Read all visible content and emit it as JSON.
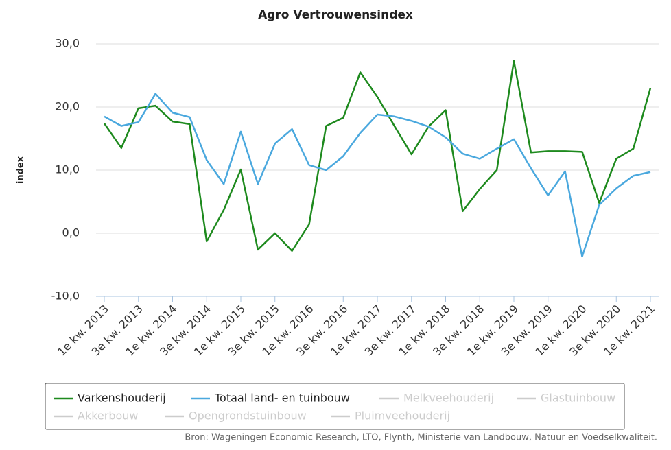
{
  "chart_data": {
    "type": "line",
    "title": "Agro Vertrouwensindex",
    "y_label": "index",
    "source": "Bron: Wageningen Economic Research, LTO, Flynth, Ministerie van Landbouw, Natuur en Voedselkwaliteit.",
    "categories": [
      "1e kw. 2013",
      null,
      "3e kw. 2013",
      null,
      "1e kw. 2014",
      null,
      "3e kw. 2014",
      null,
      "1e kw. 2015",
      null,
      "3e kw. 2015",
      null,
      "1e kw. 2016",
      null,
      "3e kw. 2016",
      null,
      "1e kw. 2017",
      null,
      "3e kw. 2017",
      null,
      "1e kw. 2018",
      null,
      "3e kw. 2018",
      null,
      "1e kw. 2019",
      null,
      "3e kw. 2019",
      null,
      "1e kw. 2020",
      null,
      "3e kw. 2020",
      null,
      "1e kw. 2021"
    ],
    "series": [
      {
        "name": "Varkenshouderij",
        "color": "#1e8a1e",
        "values": [
          17.4,
          13.5,
          19.8,
          20.2,
          17.7,
          17.3,
          -1.3,
          3.7,
          10.1,
          -2.6,
          0,
          -2.8,
          1.4,
          17.0,
          18.3,
          25.5,
          21.6,
          17.0,
          12.5,
          16.9,
          19.5,
          3.5,
          7.0,
          10.0,
          27.3,
          12.8,
          13.0,
          13.0,
          12.9,
          4.8,
          11.8,
          13.4,
          23.0
        ]
      },
      {
        "name": "Totaal land- en tuinbouw",
        "color": "#4aa8de",
        "values": [
          18.5,
          17.0,
          17.6,
          22.1,
          19.1,
          18.4,
          11.6,
          7.8,
          16.1,
          7.8,
          14.2,
          16.5,
          10.8,
          10.0,
          12.2,
          15.9,
          18.8,
          18.5,
          17.8,
          16.9,
          15.2,
          12.6,
          11.8,
          13.4,
          14.9,
          10.3,
          6.0,
          9.8,
          -3.7,
          4.5,
          7.1,
          9.1,
          9.7
        ]
      }
    ],
    "hidden_series": [
      "Melkveehouderij",
      "Glastuinbouw",
      "Akkerbouw",
      "Opengrondstuinbouw",
      "Pluimveehouderij"
    ],
    "hidden_color": "#cccccc",
    "ylim": [
      -10,
      30
    ],
    "yticks": [
      {
        "value": -10,
        "label": "-10,0"
      },
      {
        "value": 0,
        "label": "0,0"
      },
      {
        "value": 10,
        "label": "10,0"
      },
      {
        "value": 20,
        "label": "20,0"
      },
      {
        "value": 30,
        "label": "30,0"
      }
    ],
    "grid": true
  }
}
